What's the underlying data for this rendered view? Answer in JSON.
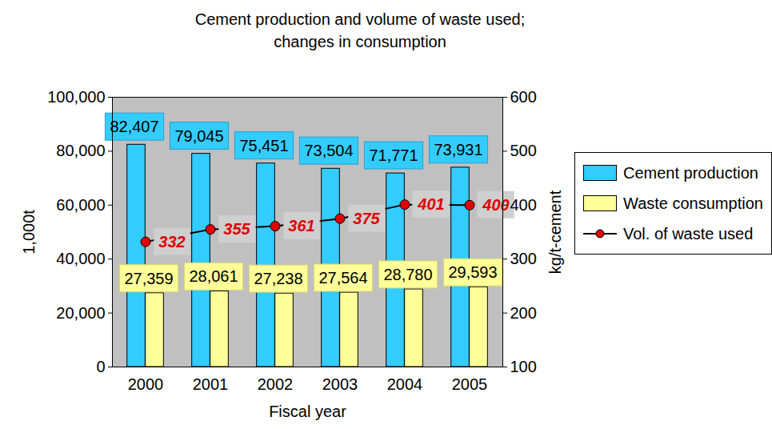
{
  "chart_data": {
    "type": "bar",
    "title": "Cement production and volume of waste used;",
    "subtitle": "changes in consumption",
    "x_label": "Fiscal year",
    "y_label": "1,000t",
    "y2_label": "kg/t-cement",
    "categories": [
      "2000",
      "2001",
      "2002",
      "2003",
      "2004",
      "2005"
    ],
    "series": [
      {
        "name": "Cement production",
        "color": "#33ccff",
        "values": [
          82407,
          79045,
          75451,
          73504,
          71771,
          73931
        ],
        "value_labels": [
          "82,407",
          "79,045",
          "75,451",
          "73,504",
          "71,771",
          "73,931"
        ]
      },
      {
        "name": "Waste consumption",
        "color": "#ffff99",
        "values": [
          27359,
          28061,
          27238,
          27564,
          28780,
          29593
        ],
        "value_labels": [
          "27,359",
          "28,061",
          "27,238",
          "27,564",
          "28,780",
          "29,593"
        ]
      },
      {
        "name": "Vol. of waste used",
        "type": "line",
        "axis": "y2",
        "color": "#e00000",
        "marker": "circle",
        "values": [
          332,
          355,
          361,
          375,
          401,
          400
        ]
      }
    ],
    "ylim": [
      0,
      100000
    ],
    "yticks": [
      0,
      {
        "value": 20000,
        "label": "20,000"
      },
      {
        "value": 40000,
        "label": "40,000"
      },
      {
        "value": 60000,
        "label": "60,000"
      },
      {
        "value": 80000,
        "label": "80,000"
      },
      {
        "value": 100000,
        "label": "100,000"
      }
    ],
    "y2lim": [
      100,
      600
    ],
    "y2ticks": [
      100,
      200,
      300,
      400,
      500,
      600
    ],
    "data_labels": true,
    "legend": "right",
    "grid": false
  }
}
